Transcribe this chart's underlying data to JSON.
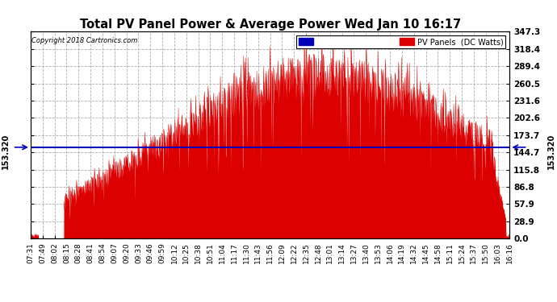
{
  "title": "Total PV Panel Power & Average Power Wed Jan 10 16:17",
  "copyright": "Copyright 2018 Cartronics.com",
  "avg_value": 153.32,
  "ymax": 347.3,
  "ymin": 0.0,
  "yticks": [
    0.0,
    28.9,
    57.9,
    86.8,
    115.8,
    144.7,
    173.7,
    202.6,
    231.6,
    260.5,
    289.4,
    318.4,
    347.3
  ],
  "legend_avg_color": "#0000bb",
  "legend_pv_color": "#dd0000",
  "fill_color": "#dd0000",
  "avg_line_color": "#0000bb",
  "background_color": "#ffffff",
  "grid_color": "#999999",
  "xtick_labels": [
    "07:31",
    "07:49",
    "08:02",
    "08:15",
    "08:28",
    "08:41",
    "08:54",
    "09:07",
    "09:20",
    "09:33",
    "09:46",
    "09:59",
    "10:12",
    "10:25",
    "10:38",
    "10:51",
    "11:04",
    "11:17",
    "11:30",
    "11:43",
    "11:56",
    "12:09",
    "12:22",
    "12:35",
    "12:48",
    "13:01",
    "13:14",
    "13:27",
    "13:40",
    "13:53",
    "14:06",
    "14:19",
    "14:32",
    "14:45",
    "14:58",
    "15:11",
    "15:24",
    "15:37",
    "15:50",
    "16:03",
    "16:16"
  ]
}
